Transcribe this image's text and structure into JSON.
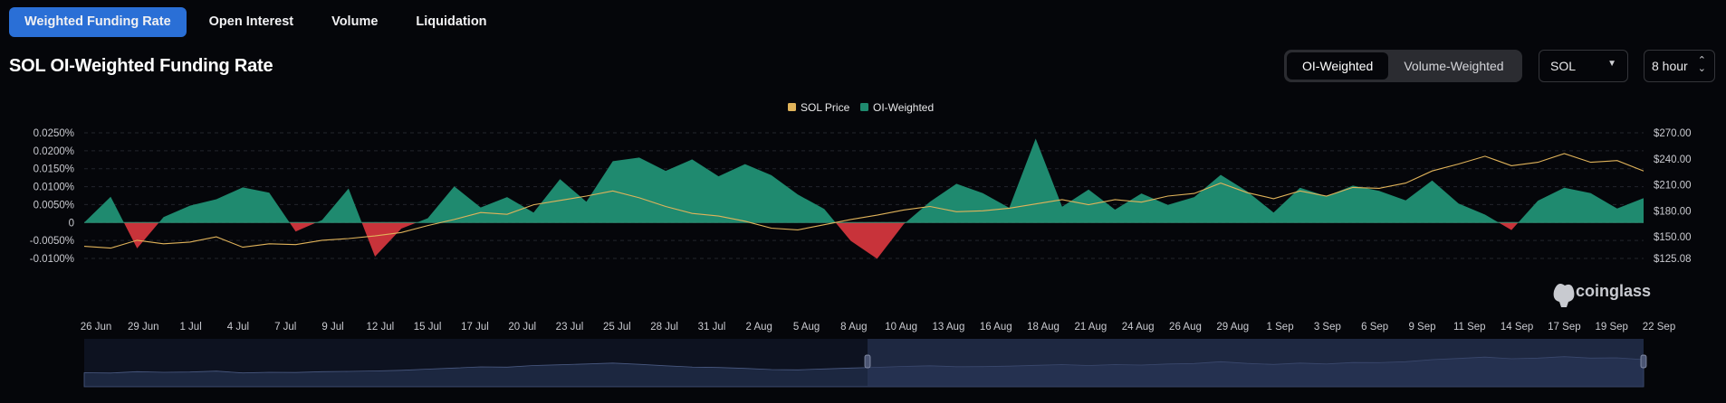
{
  "tabs": [
    {
      "label": "Weighted Funding Rate",
      "active": true
    },
    {
      "label": "Open Interest",
      "active": false
    },
    {
      "label": "Volume",
      "active": false
    },
    {
      "label": "Liquidation",
      "active": false
    }
  ],
  "title": "SOL OI-Weighted Funding Rate",
  "weighting": {
    "options": [
      "OI-Weighted",
      "Volume-Weighted"
    ],
    "selected": "OI-Weighted"
  },
  "coin_select": {
    "value": "SOL",
    "icon": "chevron-down-icon"
  },
  "interval_select": {
    "value": "8 hour",
    "icon": "up-down-chevron-icon"
  },
  "watermark": {
    "text": "coinglass",
    "icon": "coinglass-logo-icon"
  },
  "colors": {
    "tab_active": "#2a6fd6",
    "positive": "#1f8a6f",
    "negative": "#c8333a",
    "price": "#e0b35a",
    "navigator_fill": "#1c2740",
    "navigator_selected": "#2e3a5c"
  },
  "chart_data": {
    "type": "area",
    "legend": [
      "SOL Price",
      "OI-Weighted"
    ],
    "legend_position": "top-center",
    "grid": true,
    "y_left": {
      "ticks": [
        "0.0250%",
        "0.0200%",
        "0.0150%",
        "0.0100%",
        "0.0050%",
        "0",
        "-0.0050%",
        "-0.0100%"
      ],
      "range": [
        -0.0001,
        0.00025
      ]
    },
    "y_right": {
      "ticks": [
        "$270.00",
        "$240.00",
        "$210.00",
        "$180.00",
        "$150.00",
        "$125.08"
      ],
      "range": [
        125.08,
        270
      ]
    },
    "x_ticks": [
      "26 Jun",
      "29 Jun",
      "1 Jul",
      "4 Jul",
      "7 Jul",
      "9 Jul",
      "12 Jul",
      "15 Jul",
      "17 Jul",
      "20 Jul",
      "23 Jul",
      "25 Jul",
      "28 Jul",
      "31 Jul",
      "2 Aug",
      "5 Aug",
      "8 Aug",
      "10 Aug",
      "13 Aug",
      "16 Aug",
      "18 Aug",
      "21 Aug",
      "24 Aug",
      "26 Aug",
      "29 Aug",
      "1 Sep",
      "3 Sep",
      "6 Sep",
      "9 Sep",
      "11 Sep",
      "14 Sep",
      "17 Sep",
      "19 Sep",
      "22 Sep"
    ],
    "series": [
      {
        "name": "OI-Weighted",
        "values": [
          0.0,
          0.0072,
          -0.0072,
          0.0015,
          0.0047,
          0.0065,
          0.0098,
          0.0083,
          -0.0025,
          0.0007,
          0.0095,
          -0.0095,
          -0.0017,
          0.0012,
          0.0101,
          0.0042,
          0.0071,
          0.0028,
          0.0121,
          0.0058,
          0.0171,
          0.0181,
          0.0144,
          0.0176,
          0.0129,
          0.0163,
          0.0132,
          0.0078,
          0.0038,
          -0.0051,
          -0.0101,
          -0.0005,
          0.0058,
          0.0108,
          0.0082,
          0.0041,
          0.0234,
          0.0044,
          0.0092,
          0.0036,
          0.0081,
          0.0049,
          0.0071,
          0.0133,
          0.0087,
          0.0028,
          0.0097,
          0.0073,
          0.0103,
          0.0088,
          0.0062,
          0.0117,
          0.0053,
          0.0022,
          -0.0021,
          0.0061,
          0.0097,
          0.0082,
          0.0039,
          0.0068
        ]
      },
      {
        "name": "SOL Price",
        "values": [
          139,
          137,
          146,
          142,
          144,
          150,
          138,
          142,
          141,
          146,
          148,
          151,
          155,
          163,
          170,
          178,
          176,
          187,
          192,
          197,
          203,
          195,
          185,
          177,
          174,
          168,
          160,
          158,
          164,
          170,
          175,
          181,
          185,
          179,
          180,
          183,
          188,
          193,
          187,
          193,
          190,
          197,
          200,
          212,
          201,
          194,
          203,
          197,
          207,
          206,
          212,
          226,
          234,
          243,
          232,
          236,
          246,
          236,
          238,
          226
        ]
      }
    ],
    "navigator": {
      "selected_range": [
        "10 Aug",
        "22 Sep"
      ]
    }
  }
}
